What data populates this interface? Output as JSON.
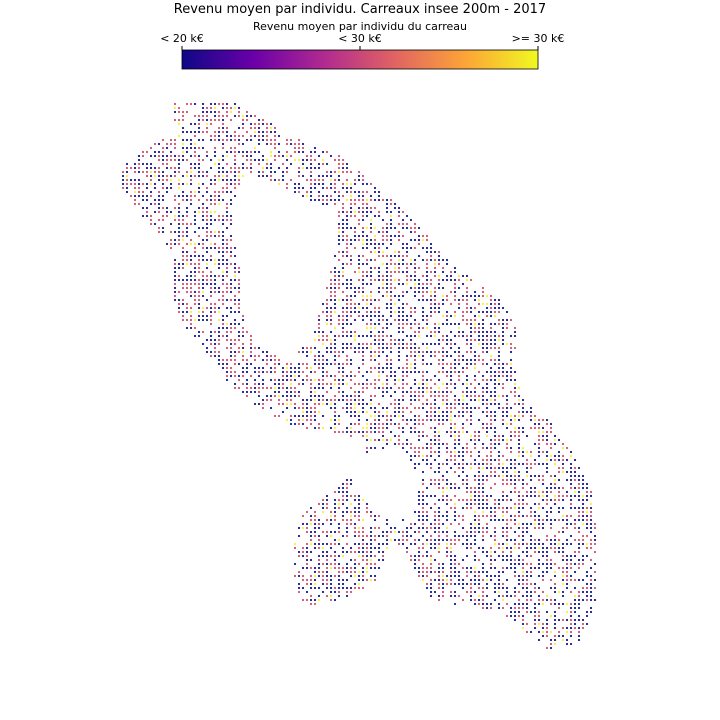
{
  "map": {
    "title": "Revenu moyen par individu. Carreaux insee 200m - 2017",
    "colorbar": {
      "label": "Revenu moyen par individu du carreau",
      "ticks": [
        "< 20 k€",
        "< 30 k€",
        ">= 30 k€"
      ],
      "colormap": "plasma",
      "stops": [
        "#0d0887",
        "#6a00a8",
        "#b12a90",
        "#e16462",
        "#fca636",
        "#f0f921"
      ]
    },
    "cell_size": "200m",
    "year": "2017",
    "region_outline": "Martinique",
    "dominant_colors": {
      "low": "#2c2f9e",
      "mid": "#d9607a",
      "high": "#f5f542"
    }
  }
}
